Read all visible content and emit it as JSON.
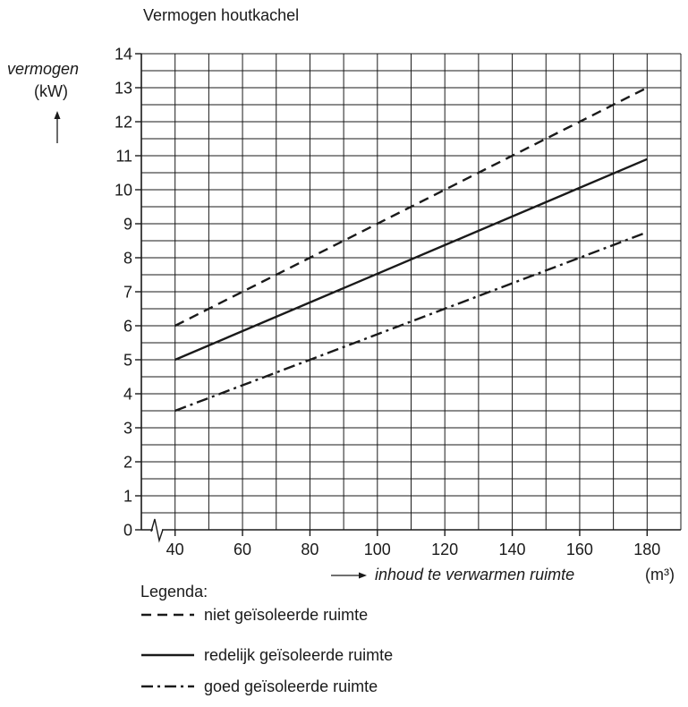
{
  "chart_data": {
    "type": "line",
    "title": "Vermogen houtkachel",
    "ylabel": "vermogen",
    "yunit": "(kW)",
    "xlabel": "inhoud te verwarmen ruimte",
    "xunit": "(m³)",
    "ylim": [
      0,
      14
    ],
    "xlim": [
      30,
      190
    ],
    "x_axis_break": true,
    "xticks": [
      40,
      60,
      80,
      100,
      120,
      140,
      160,
      180
    ],
    "yticks": [
      0,
      1,
      2,
      3,
      4,
      5,
      6,
      7,
      8,
      9,
      10,
      11,
      12,
      13,
      14
    ],
    "grid": true,
    "legend_title": "Legenda:",
    "legend_position": "bottom-left",
    "series": [
      {
        "name": "niet geïsoleerde ruimte",
        "style": "dashed",
        "x": [
          40,
          180
        ],
        "y": [
          6,
          13
        ]
      },
      {
        "name": "redelijk geïsoleerde ruimte",
        "style": "solid",
        "x": [
          40,
          180
        ],
        "y": [
          5,
          10.9
        ]
      },
      {
        "name": "goed geïsoleerde ruimte",
        "style": "dashdot",
        "x": [
          40,
          180
        ],
        "y": [
          3.5,
          8.75
        ]
      }
    ]
  },
  "colors": {
    "line": "#1a1a1a",
    "grid": "#1a1a1a",
    "background": "#ffffff"
  }
}
